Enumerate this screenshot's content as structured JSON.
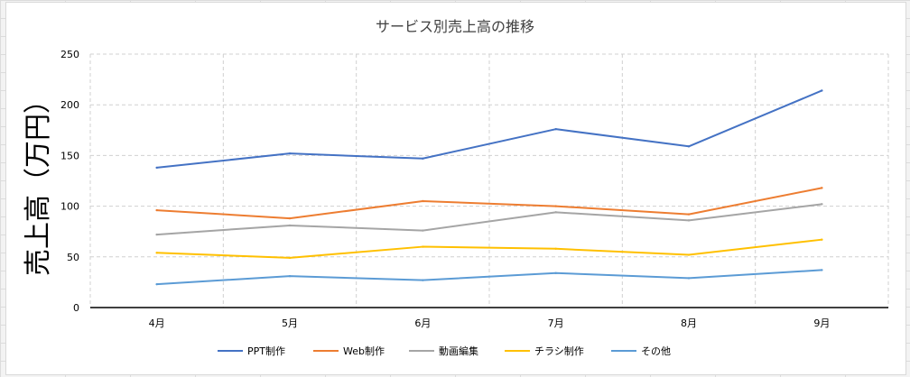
{
  "chart_data": {
    "type": "line",
    "title": "サービス別売上高の推移",
    "xlabel": "",
    "ylabel": "売上高（万円）",
    "categories": [
      "4月",
      "5月",
      "6月",
      "7月",
      "8月",
      "9月"
    ],
    "ylim": [
      0,
      250
    ],
    "yticks": [
      0,
      50,
      100,
      150,
      200,
      250
    ],
    "grid": "dashed",
    "legend_position": "bottom",
    "series": [
      {
        "name": "PPT制作",
        "color": "#4472c4",
        "values": [
          138,
          152,
          147,
          176,
          159,
          214
        ]
      },
      {
        "name": "Web制作",
        "color": "#ed7d31",
        "values": [
          96,
          88,
          105,
          100,
          92,
          118
        ]
      },
      {
        "name": "動画編集",
        "color": "#a5a5a5",
        "values": [
          72,
          81,
          76,
          94,
          86,
          102
        ]
      },
      {
        "name": "チラシ制作",
        "color": "#ffc000",
        "values": [
          54,
          49,
          60,
          58,
          52,
          67
        ]
      },
      {
        "name": "その他",
        "color": "#5b9bd5",
        "values": [
          23,
          31,
          27,
          34,
          29,
          37
        ]
      }
    ]
  }
}
